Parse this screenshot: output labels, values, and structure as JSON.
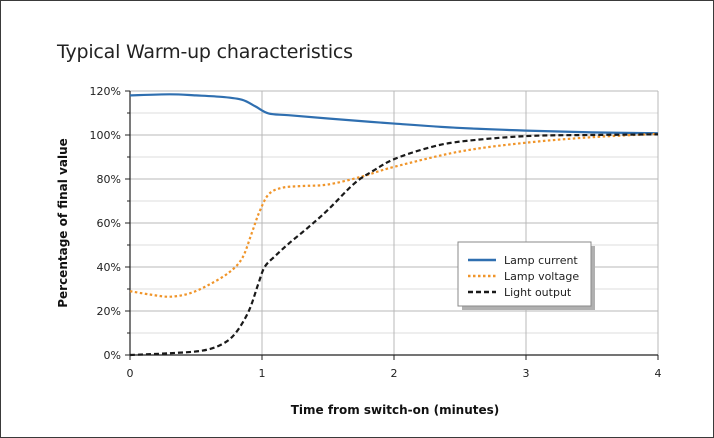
{
  "chart_data": {
    "type": "line",
    "title": "Typical Warm-up characteristics",
    "xlabel": "Time from switch-on (minutes)",
    "ylabel": "Percentage of final value",
    "xlim": [
      0,
      4
    ],
    "ylim": [
      0,
      120
    ],
    "x_ticks": [
      0,
      1,
      2,
      3,
      4
    ],
    "x_tick_labels": [
      "0",
      "1",
      "2",
      "3",
      "4"
    ],
    "y_ticks": [
      0,
      20,
      40,
      60,
      80,
      100,
      120
    ],
    "y_tick_labels": [
      "0%",
      "20%",
      "40%",
      "60%",
      "80%",
      "100%",
      "120%"
    ],
    "grid": true,
    "legend_position": "right",
    "series": [
      {
        "name": "Lamp current",
        "color": "#2f6fb0",
        "style": "solid",
        "points": [
          [
            0,
            118
          ],
          [
            0.3,
            118.5
          ],
          [
            0.5,
            118
          ],
          [
            0.7,
            117.3
          ],
          [
            0.85,
            116
          ],
          [
            0.95,
            113
          ],
          [
            1.05,
            109.8
          ],
          [
            1.2,
            109
          ],
          [
            1.5,
            107.5
          ],
          [
            2,
            105.2
          ],
          [
            2.5,
            103.2
          ],
          [
            3,
            102
          ],
          [
            3.5,
            101.2
          ],
          [
            4,
            100.8
          ]
        ]
      },
      {
        "name": "Lamp voltage",
        "color": "#f0952a",
        "style": "dotted",
        "points": [
          [
            0,
            29
          ],
          [
            0.15,
            27.5
          ],
          [
            0.3,
            26.5
          ],
          [
            0.45,
            28
          ],
          [
            0.6,
            32
          ],
          [
            0.75,
            37.5
          ],
          [
            0.85,
            44
          ],
          [
            0.92,
            55
          ],
          [
            0.98,
            65
          ],
          [
            1.05,
            73
          ],
          [
            1.15,
            76
          ],
          [
            1.3,
            76.8
          ],
          [
            1.5,
            77.5
          ],
          [
            1.75,
            81
          ],
          [
            2,
            85.5
          ],
          [
            2.5,
            92.5
          ],
          [
            3,
            96.5
          ],
          [
            3.5,
            99
          ],
          [
            4,
            100.5
          ]
        ]
      },
      {
        "name": "Light output",
        "color": "#1a1a1a",
        "style": "dashed",
        "points": [
          [
            0,
            0
          ],
          [
            0.3,
            0.8
          ],
          [
            0.55,
            2
          ],
          [
            0.7,
            5
          ],
          [
            0.8,
            10
          ],
          [
            0.9,
            20
          ],
          [
            0.97,
            32
          ],
          [
            1.02,
            40
          ],
          [
            1.1,
            45
          ],
          [
            1.2,
            50.5
          ],
          [
            1.35,
            58
          ],
          [
            1.5,
            66
          ],
          [
            1.7,
            78
          ],
          [
            1.85,
            84
          ],
          [
            2,
            89
          ],
          [
            2.25,
            94
          ],
          [
            2.5,
            97
          ],
          [
            3,
            99.5
          ],
          [
            3.5,
            100
          ],
          [
            4,
            100.3
          ]
        ]
      }
    ]
  }
}
